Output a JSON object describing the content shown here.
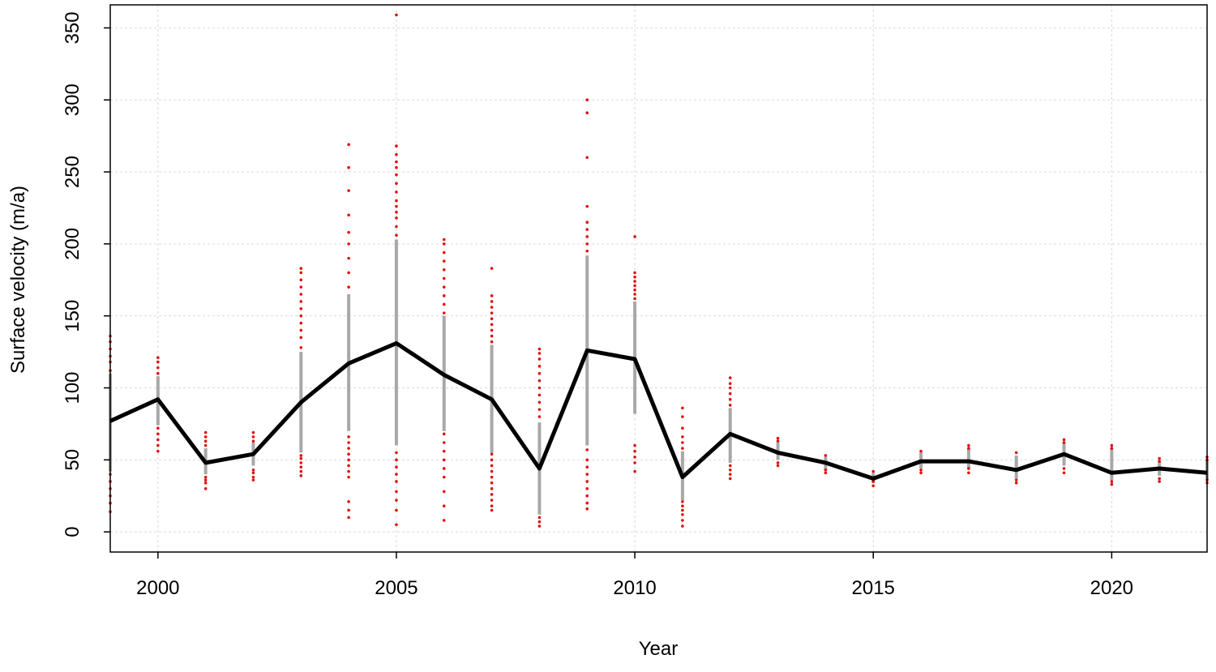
{
  "chart_data": {
    "type": "line",
    "title": "",
    "xlabel": "Year",
    "ylabel": "Surface velocity (m/a)",
    "xlim": [
      1999,
      2022
    ],
    "ylim": [
      -14,
      366
    ],
    "x_ticks": [
      2000,
      2005,
      2010,
      2015,
      2020
    ],
    "y_ticks": [
      0,
      50,
      100,
      150,
      200,
      250,
      300,
      350
    ],
    "grid": true,
    "colors": {
      "line": "#000000",
      "range": "#a8a8a8",
      "points": "#e01010",
      "grid": "#d9d9d9"
    },
    "series": [
      {
        "x": [
          1999,
          2000,
          2001,
          2002,
          2003,
          2004,
          2005,
          2006,
          2007,
          2008,
          2009,
          2010,
          2011,
          2012,
          2013,
          2014,
          2015,
          2016,
          2017,
          2018,
          2019,
          2020,
          2021,
          2022
        ],
        "values": [
          77,
          92,
          48,
          54,
          90,
          117,
          131,
          109,
          92,
          44,
          126,
          120,
          38,
          68,
          55,
          48,
          37,
          49,
          49,
          43,
          54,
          41,
          44,
          41
        ]
      }
    ],
    "ranges": [
      {
        "x": 1999,
        "low": 42,
        "high": 110
      },
      {
        "x": 2000,
        "low": 74,
        "high": 108
      },
      {
        "x": 2001,
        "low": 40,
        "high": 58
      },
      {
        "x": 2002,
        "low": 46,
        "high": 62
      },
      {
        "x": 2003,
        "low": 55,
        "high": 125
      },
      {
        "x": 2004,
        "low": 70,
        "high": 165
      },
      {
        "x": 2005,
        "low": 60,
        "high": 203
      },
      {
        "x": 2006,
        "low": 70,
        "high": 150
      },
      {
        "x": 2007,
        "low": 55,
        "high": 130
      },
      {
        "x": 2008,
        "low": 12,
        "high": 76
      },
      {
        "x": 2009,
        "low": 60,
        "high": 192
      },
      {
        "x": 2010,
        "low": 82,
        "high": 160
      },
      {
        "x": 2011,
        "low": 22,
        "high": 56
      },
      {
        "x": 2012,
        "low": 48,
        "high": 86
      },
      {
        "x": 2013,
        "low": 50,
        "high": 62
      },
      {
        "x": 2014,
        "low": 43,
        "high": 52
      },
      {
        "x": 2015,
        "low": 34,
        "high": 41
      },
      {
        "x": 2016,
        "low": 44,
        "high": 55
      },
      {
        "x": 2017,
        "low": 44,
        "high": 58
      },
      {
        "x": 2018,
        "low": 37,
        "high": 53
      },
      {
        "x": 2019,
        "low": 46,
        "high": 62
      },
      {
        "x": 2020,
        "low": 36,
        "high": 58
      },
      {
        "x": 2021,
        "low": 39,
        "high": 49
      },
      {
        "x": 2022,
        "low": 36,
        "high": 50
      }
    ],
    "outliers": [
      {
        "x": 1999,
        "values": [
          14,
          20,
          25,
          30,
          35,
          40,
          112,
          118,
          122,
          127,
          132,
          136
        ]
      },
      {
        "x": 2000,
        "values": [
          56,
          60,
          64,
          68,
          72,
          110,
          114,
          118,
          121
        ]
      },
      {
        "x": 2001,
        "values": [
          30,
          34,
          36,
          38,
          60,
          63,
          66,
          69
        ]
      },
      {
        "x": 2002,
        "values": [
          36,
          38,
          41,
          43,
          63,
          66,
          69
        ]
      },
      {
        "x": 2003,
        "values": [
          39,
          42,
          45,
          48,
          51,
          53,
          128,
          135,
          140,
          145,
          150,
          155,
          160,
          165,
          170,
          175,
          180,
          183
        ]
      },
      {
        "x": 2004,
        "values": [
          10,
          15,
          21,
          38,
          42,
          46,
          50,
          54,
          58,
          62,
          66,
          170,
          180,
          190,
          200,
          208,
          220,
          237,
          253,
          269
        ]
      },
      {
        "x": 2005,
        "values": [
          5,
          15,
          22,
          28,
          35,
          40,
          45,
          50,
          55,
          206,
          212,
          218,
          222,
          226,
          230,
          236,
          242,
          248,
          253,
          257,
          262,
          268,
          359
        ]
      },
      {
        "x": 2006,
        "values": [
          8,
          18,
          28,
          38,
          44,
          50,
          56,
          62,
          68,
          152,
          158,
          164,
          170,
          176,
          182,
          188,
          194,
          200,
          203
        ]
      },
      {
        "x": 2007,
        "values": [
          15,
          18,
          22,
          26,
          30,
          34,
          38,
          42,
          46,
          50,
          54,
          132,
          136,
          140,
          144,
          148,
          152,
          156,
          160,
          164,
          183
        ]
      },
      {
        "x": 2008,
        "values": [
          4,
          7,
          10,
          80,
          85,
          90,
          95,
          100,
          105,
          110,
          115,
          120,
          124,
          127
        ]
      },
      {
        "x": 2009,
        "values": [
          16,
          20,
          25,
          30,
          35,
          40,
          45,
          50,
          57,
          195,
          200,
          205,
          210,
          215,
          226,
          260,
          291,
          300
        ]
      },
      {
        "x": 2010,
        "values": [
          42,
          48,
          52,
          56,
          60,
          162,
          165,
          168,
          171,
          174,
          177,
          180,
          205
        ]
      },
      {
        "x": 2011,
        "values": [
          4,
          8,
          12,
          15,
          18,
          21,
          58,
          62,
          66,
          72,
          80,
          86
        ]
      },
      {
        "x": 2012,
        "values": [
          37,
          40,
          43,
          46,
          88,
          92,
          96,
          100,
          103,
          107
        ]
      },
      {
        "x": 2013,
        "values": [
          46,
          48,
          63,
          65
        ]
      },
      {
        "x": 2014,
        "values": [
          41,
          43,
          53
        ]
      },
      {
        "x": 2015,
        "values": [
          32,
          35,
          42
        ]
      },
      {
        "x": 2016,
        "values": [
          41,
          43,
          56
        ]
      },
      {
        "x": 2017,
        "values": [
          41,
          44,
          58,
          60
        ]
      },
      {
        "x": 2018,
        "values": [
          34,
          36,
          55
        ]
      },
      {
        "x": 2019,
        "values": [
          41,
          44,
          62,
          64
        ]
      },
      {
        "x": 2020,
        "values": [
          33,
          35,
          58,
          60
        ]
      },
      {
        "x": 2021,
        "values": [
          35,
          37,
          49,
          51
        ]
      },
      {
        "x": 2022,
        "values": [
          34,
          36,
          50,
          52
        ]
      }
    ]
  }
}
